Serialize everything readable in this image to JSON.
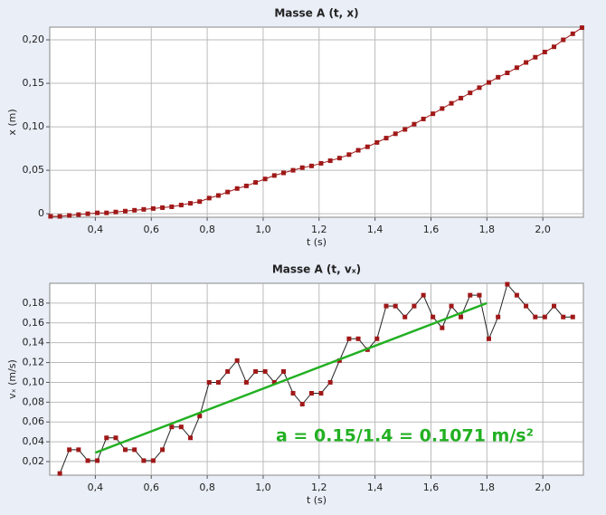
{
  "chart_data": [
    {
      "type": "line",
      "title": "Masse A (t, x)",
      "x_label": "t (s)",
      "y_label": "x (m)",
      "x": [
        0.24,
        0.273,
        0.307,
        0.34,
        0.373,
        0.407,
        0.44,
        0.473,
        0.507,
        0.54,
        0.573,
        0.607,
        0.64,
        0.673,
        0.707,
        0.74,
        0.773,
        0.807,
        0.84,
        0.873,
        0.907,
        0.94,
        0.973,
        1.007,
        1.04,
        1.073,
        1.107,
        1.14,
        1.173,
        1.207,
        1.24,
        1.273,
        1.307,
        1.34,
        1.373,
        1.407,
        1.44,
        1.473,
        1.507,
        1.54,
        1.573,
        1.607,
        1.64,
        1.673,
        1.707,
        1.74,
        1.773,
        1.807,
        1.84,
        1.873,
        1.907,
        1.94,
        1.973,
        2.007,
        2.04,
        2.073,
        2.107,
        2.14
      ],
      "series": [
        {
          "color": "#a01818",
          "line_color": "#a01818",
          "values": [
            -0.003,
            -0.003,
            -0.002,
            -0.001,
            0,
            0.001,
            0.001,
            0.002,
            0.003,
            0.004,
            0.005,
            0.006,
            0.007,
            0.008,
            0.01,
            0.012,
            0.014,
            0.018,
            0.021,
            0.025,
            0.029,
            0.032,
            0.036,
            0.04,
            0.044,
            0.047,
            0.05,
            0.053,
            0.055,
            0.058,
            0.061,
            0.064,
            0.068,
            0.073,
            0.077,
            0.082,
            0.087,
            0.092,
            0.097,
            0.103,
            0.109,
            0.115,
            0.121,
            0.127,
            0.133,
            0.139,
            0.145,
            0.151,
            0.157,
            0.162,
            0.168,
            0.174,
            0.18,
            0.186,
            0.192,
            0.2,
            0.207,
            0.214
          ]
        }
      ],
      "xlim": [
        0.237,
        2.145
      ],
      "xticks": [
        {
          "value": 0.4,
          "label": "0,4"
        },
        {
          "value": 0.6,
          "label": "0,6"
        },
        {
          "value": 0.8,
          "label": "0,8"
        },
        {
          "value": 1.0,
          "label": "1,0"
        },
        {
          "value": 1.2,
          "label": "1,2"
        },
        {
          "value": 1.4,
          "label": "1,4"
        },
        {
          "value": 1.6,
          "label": "1,6"
        },
        {
          "value": 1.8,
          "label": "1,8"
        },
        {
          "value": 2.0,
          "label": "2,0"
        }
      ],
      "ylim": [
        -0.004,
        0.2146
      ],
      "yticks": [
        0,
        {
          "value": 0.05,
          "label": "0,05"
        },
        {
          "value": 0.1,
          "label": "0,10"
        },
        {
          "value": 0.15,
          "label": "0,15"
        },
        {
          "value": 0.2,
          "label": "0,20"
        }
      ],
      "grid": true
    },
    {
      "type": "line",
      "title": "Masse A (t, vₓ)",
      "x_label": "t (s)",
      "y_label": "vₓ (m/s)",
      "x": [
        0.273,
        0.307,
        0.34,
        0.373,
        0.407,
        0.44,
        0.473,
        0.507,
        0.54,
        0.573,
        0.607,
        0.64,
        0.673,
        0.707,
        0.74,
        0.773,
        0.807,
        0.84,
        0.873,
        0.907,
        0.94,
        0.973,
        1.007,
        1.04,
        1.073,
        1.107,
        1.14,
        1.173,
        1.207,
        1.24,
        1.273,
        1.307,
        1.34,
        1.373,
        1.407,
        1.44,
        1.473,
        1.507,
        1.54,
        1.573,
        1.607,
        1.64,
        1.673,
        1.707,
        1.74,
        1.773,
        1.807,
        1.84,
        1.873,
        1.907,
        1.94,
        1.973,
        2.007,
        2.04,
        2.073,
        2.107
      ],
      "series": [
        {
          "color": "#a01818",
          "line_color": "#222222",
          "values": [
            0.008,
            0.032,
            0.032,
            0.021,
            0.021,
            0.044,
            0.044,
            0.032,
            0.032,
            0.021,
            0.021,
            0.032,
            0.055,
            0.055,
            0.044,
            0.066,
            0.1,
            0.1,
            0.111,
            0.122,
            0.1,
            0.111,
            0.111,
            0.1,
            0.111,
            0.089,
            0.078,
            0.089,
            0.089,
            0.1,
            0.122,
            0.144,
            0.144,
            0.133,
            0.144,
            0.177,
            0.177,
            0.166,
            0.177,
            0.188,
            0.166,
            0.155,
            0.177,
            0.166,
            0.188,
            0.188,
            0.144,
            0.166,
            0.199,
            0.188,
            0.177,
            0.166,
            0.166,
            0.177,
            0.166,
            0.166
          ]
        }
      ],
      "fit": {
        "x": [
          0.4,
          1.8
        ],
        "values": [
          0.029,
          0.18
        ],
        "color": "#22b022"
      },
      "annotation": "a = 0.15/1.4 = 0.1071 m/s²",
      "xlim": [
        0.237,
        2.145
      ],
      "xticks": [
        {
          "value": 0.4,
          "label": "0,4"
        },
        {
          "value": 0.6,
          "label": "0,6"
        },
        {
          "value": 0.8,
          "label": "0,8"
        },
        {
          "value": 1.0,
          "label": "1,0"
        },
        {
          "value": 1.2,
          "label": "1,2"
        },
        {
          "value": 1.4,
          "label": "1,4"
        },
        {
          "value": 1.6,
          "label": "1,6"
        },
        {
          "value": 1.8,
          "label": "1,8"
        },
        {
          "value": 2.0,
          "label": "2,0"
        }
      ],
      "ylim": [
        0.0063,
        0.2
      ],
      "yticks": [
        {
          "value": 0.02,
          "label": "0,02"
        },
        {
          "value": 0.04,
          "label": "0,04"
        },
        {
          "value": 0.06,
          "label": "0,06"
        },
        {
          "value": 0.08,
          "label": "0,08"
        },
        {
          "value": 0.1,
          "label": "0,10"
        },
        {
          "value": 0.12,
          "label": "0,12"
        },
        {
          "value": 0.14,
          "label": "0,14"
        },
        {
          "value": 0.16,
          "label": "0,16"
        },
        {
          "value": 0.18,
          "label": "0,18"
        }
      ],
      "grid": true
    }
  ]
}
